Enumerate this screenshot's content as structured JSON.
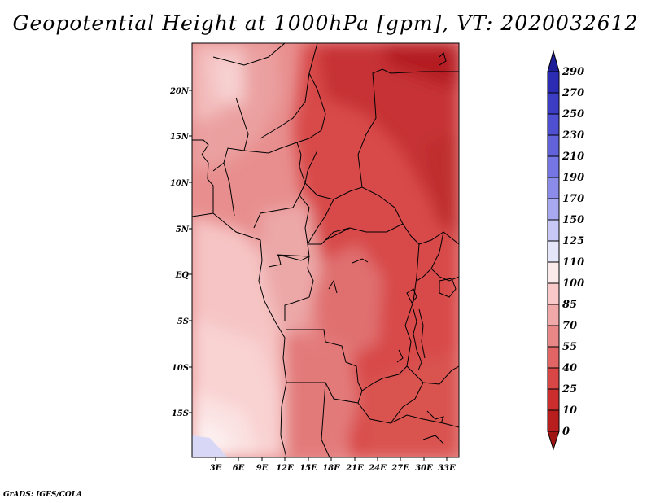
{
  "title": "Geopotential Height at 1000hPa [gpm], VT: 2020032612",
  "credit": "GrADS: IGES/COLA",
  "map": {
    "region": "Central Africa",
    "lon_range": [
      0,
      34.5
    ],
    "lat_range": [
      -19.5,
      24.5
    ],
    "lat_ticks": [
      "20N",
      "15N",
      "10N",
      "5N",
      "EQ",
      "5S",
      "10S",
      "15S"
    ],
    "lon_ticks": [
      "3E",
      "6E",
      "9E",
      "12E",
      "15E",
      "18E",
      "21E",
      "24E",
      "27E",
      "30E",
      "33E"
    ]
  },
  "colorbar": {
    "labels": [
      "290",
      "270",
      "250",
      "230",
      "210",
      "190",
      "170",
      "150",
      "125",
      "110",
      "100",
      "85",
      "70",
      "55",
      "40",
      "25",
      "10",
      "0"
    ],
    "colors": [
      "#1e1e99",
      "#2b2bb3",
      "#3c3cc4",
      "#4f4fd1",
      "#6262db",
      "#7575e3",
      "#8b8bea",
      "#a8a8f0",
      "#c8c8f6",
      "#e6e6fb",
      "#fbeaea",
      "#f9c8c8",
      "#f1a8a8",
      "#e98787",
      "#e26565",
      "#d84646",
      "#cc2e2e",
      "#b81e1e",
      "#a01414"
    ]
  }
}
